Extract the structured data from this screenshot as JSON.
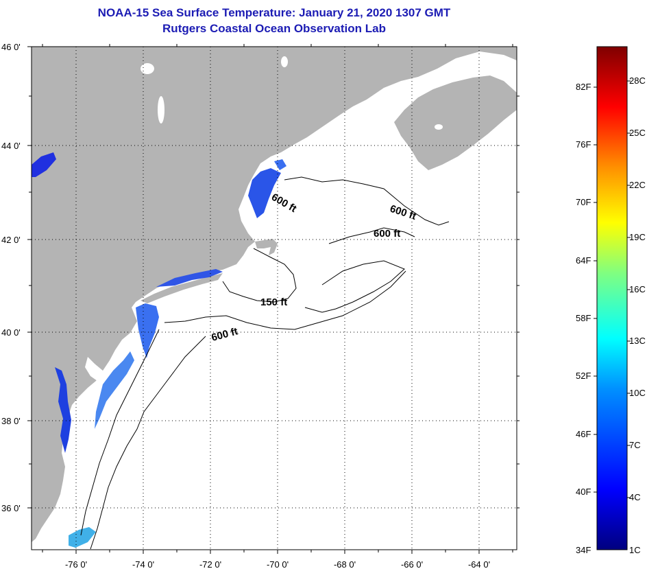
{
  "header": {
    "title": "NOAA-15 Sea Surface Temperature:  January 21, 2020 1307 GMT",
    "subtitle": "Rutgers Coastal Ocean Observation Lab"
  },
  "map": {
    "lon_range": [
      -77.0,
      -62.5
    ],
    "lat_range": [
      35.0,
      46.2
    ],
    "lat_ticks": [
      "46 0'",
      "44 0'",
      "42 0'",
      "40 0'",
      "38 0'",
      "36 0'"
    ],
    "lon_ticks": [
      "-76 0'",
      "-74 0'",
      "-72 0'",
      "-70 0'",
      "-68 0'",
      "-66 0'",
      "-64 0'"
    ],
    "contour_labels": [
      {
        "text": "600 ft"
      },
      {
        "text": "600 ft"
      },
      {
        "text": "600 ft"
      },
      {
        "text": "150 ft"
      },
      {
        "text": "600 ft"
      }
    ],
    "colors": {
      "land": "#b4b4b4",
      "water_no_data": "#ffffff",
      "grid": "#000000"
    }
  },
  "colorbar": {
    "fahrenheit_labels": [
      "82F",
      "76F",
      "70F",
      "64F",
      "58F",
      "52F",
      "46F",
      "40F",
      "34F"
    ],
    "celsius_labels": [
      "28C",
      "25C",
      "22C",
      "19C",
      "16C",
      "13C",
      "10C",
      "7C",
      "4C",
      "1C"
    ],
    "colors": [
      "#00007f",
      "#0000ff",
      "#0080ff",
      "#00ffff",
      "#80ff80",
      "#ffff00",
      "#ff8000",
      "#ff0000",
      "#7f0000"
    ]
  }
}
